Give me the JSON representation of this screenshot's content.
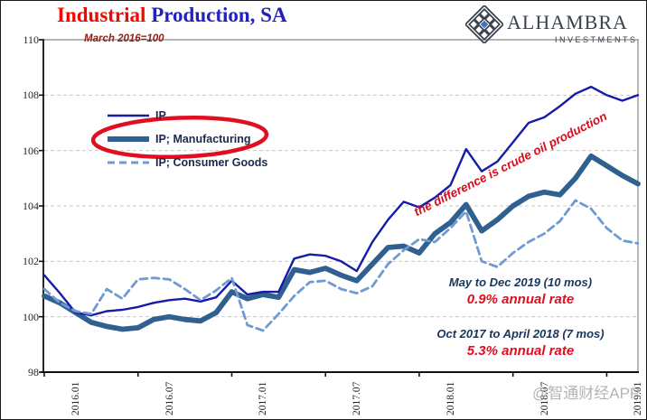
{
  "header": {
    "title_accent": "Industrial",
    "title_rest": " Production, SA",
    "subtitle": "March 2016=100"
  },
  "logo": {
    "brand": "ALHAMBRA",
    "brand_sub": "INVESTMENTS"
  },
  "annotations": {
    "diagonal_note": "the difference is crude oil production",
    "period_note_1": {
      "line1": "May to Dec 2019 (10 mos)",
      "line2": "0.9% annual rate"
    },
    "period_note_2": {
      "line1": "Oct 2017 to April 2018 (7 mos)",
      "line2": "5.3% annual rate"
    }
  },
  "watermark": "@智通财经APP",
  "colors": {
    "ip_line": "#141CA8",
    "manufacturing_line": "#2F608F",
    "consumer_goods_line": "#6F9AD3",
    "accent_red": "#E00E1F",
    "title_red": "#F40600",
    "title_blue": "#2021BE",
    "subtitle_maroon": "#8E2418",
    "note_navy": "#17365D",
    "grid_gray": "#C9C9C9",
    "watermark_gray": "#B4B4B4"
  },
  "chart_data": {
    "type": "line",
    "title": "Industrial Production, SA",
    "subtitle": "March 2016=100 (index)",
    "x_unit": "month",
    "x_tick_labels": [
      "2016.01",
      "2016.07",
      "2017.01",
      "2017.07",
      "2018.01",
      "2018.07",
      "2019.01"
    ],
    "x_tick_month_index": [
      0,
      6,
      12,
      18,
      24,
      30,
      36
    ],
    "y_ticks": [
      98,
      100,
      102,
      104,
      106,
      108,
      110
    ],
    "ylim": [
      98,
      110
    ],
    "gridlines_y": [
      100,
      102,
      104,
      106,
      108
    ],
    "grid_style": "dashed horizontal",
    "legend_position": "inside upper-left",
    "legend_highlight": "hand-drawn red ellipse around IP; Manufacturing entry",
    "months": [
      "2016.01",
      "2016.02",
      "2016.03",
      "2016.04",
      "2016.05",
      "2016.06",
      "2016.07",
      "2016.08",
      "2016.09",
      "2016.10",
      "2016.11",
      "2016.12",
      "2017.01",
      "2017.02",
      "2017.03",
      "2017.04",
      "2017.05",
      "2017.06",
      "2017.07",
      "2017.08",
      "2017.09",
      "2017.10",
      "2017.11",
      "2017.12",
      "2018.01",
      "2018.02",
      "2018.03",
      "2018.04",
      "2018.05",
      "2018.06",
      "2018.07",
      "2018.08",
      "2018.09",
      "2018.10",
      "2018.11",
      "2018.12",
      "2019.01",
      "2019.02",
      "2019.03"
    ],
    "series": [
      {
        "name": "IP",
        "style": "solid-thin",
        "color": "#141CA8",
        "values": [
          101.5,
          100.85,
          100.15,
          100.05,
          100.2,
          100.25,
          100.35,
          100.5,
          100.6,
          100.65,
          100.55,
          100.7,
          101.3,
          100.8,
          100.9,
          100.9,
          102.1,
          102.25,
          102.2,
          102.0,
          101.65,
          102.7,
          103.5,
          104.15,
          103.95,
          104.3,
          104.75,
          106.05,
          105.25,
          105.6,
          106.3,
          107.0,
          107.2,
          107.6,
          108.05,
          108.3,
          108.0,
          107.8,
          108.0
        ]
      },
      {
        "name": "IP; Manufacturing",
        "style": "solid-thick",
        "color": "#2F608F",
        "values": [
          100.75,
          100.5,
          100.15,
          99.8,
          99.65,
          99.55,
          99.6,
          99.9,
          100.0,
          99.9,
          99.85,
          100.15,
          100.9,
          100.65,
          100.8,
          100.7,
          101.7,
          101.6,
          101.75,
          101.5,
          101.3,
          101.9,
          102.5,
          102.55,
          102.3,
          103.0,
          103.4,
          104.05,
          103.1,
          103.5,
          104.0,
          104.35,
          104.5,
          104.4,
          105.0,
          105.8,
          105.45,
          105.1,
          104.8
        ]
      },
      {
        "name": "IP; Consumer Goods",
        "style": "dashed",
        "color": "#6F9AD3",
        "values": [
          101.0,
          100.5,
          100.2,
          100.1,
          101.0,
          100.65,
          101.35,
          101.4,
          101.35,
          101.0,
          100.6,
          100.95,
          101.4,
          99.7,
          99.5,
          100.1,
          100.75,
          101.25,
          101.3,
          101.0,
          100.85,
          101.1,
          101.9,
          102.4,
          102.8,
          102.7,
          103.2,
          103.8,
          102.0,
          101.8,
          102.3,
          102.7,
          103.0,
          103.45,
          104.2,
          103.9,
          103.2,
          102.75,
          102.65
        ]
      }
    ]
  }
}
